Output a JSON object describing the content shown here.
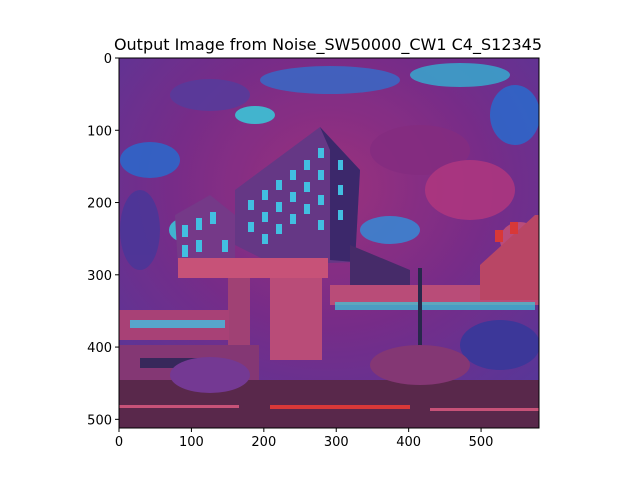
{
  "chart_data": {
    "type": "image",
    "title": "Output Image from Noise_SW50000_CW1 C4_S12345",
    "xlim": [
      0,
      580
    ],
    "ylim": [
      512,
      0
    ],
    "x_ticks": [
      0,
      100,
      200,
      300,
      400,
      500
    ],
    "y_ticks": [
      0,
      100,
      200,
      300,
      400,
      500
    ],
    "palette": {
      "sky_magenta": "#9b2f7f",
      "sky_purple": "#5b3fa3",
      "sky_blue": "#2d6fd6",
      "cyan": "#3ad6e6",
      "building_pink": "#d0567e",
      "building_dark": "#4a2d6e",
      "ground": "#5e2a4f",
      "red_accent": "#e23b3b"
    }
  }
}
